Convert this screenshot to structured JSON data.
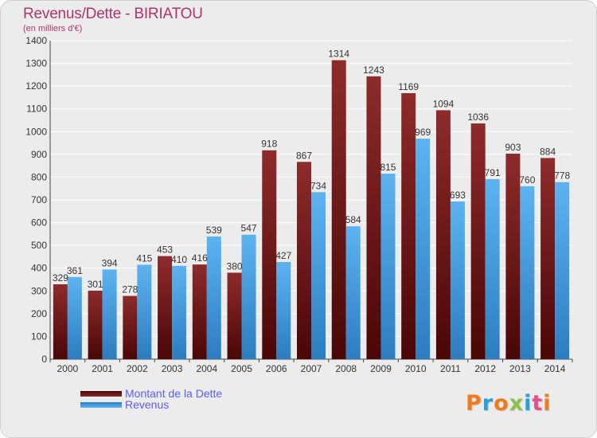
{
  "header": {
    "title": "Revenus/Dette - BIRIATOU",
    "subtitle": "(en milliers d'€)"
  },
  "legend": {
    "debt_label": "Montant de la Dette",
    "revenue_label": "Revenus"
  },
  "logo": {
    "text": "Proxiti"
  },
  "colors": {
    "debt": "#7b1c1c",
    "revenue": "#4aa3e6",
    "title": "#b2326e",
    "legend_text": "#5b5bff"
  },
  "chart_data": {
    "type": "bar",
    "categories": [
      "2000",
      "2001",
      "2002",
      "2003",
      "2004",
      "2005",
      "2006",
      "2007",
      "2008",
      "2009",
      "2010",
      "2011",
      "2012",
      "2013",
      "2014"
    ],
    "series": [
      {
        "name": "Montant de la Dette",
        "values": [
          329,
          301,
          278,
          453,
          416,
          380,
          918,
          867,
          1314,
          1243,
          1169,
          1094,
          1036,
          903,
          884
        ]
      },
      {
        "name": "Revenus",
        "values": [
          361,
          394,
          415,
          410,
          539,
          547,
          427,
          734,
          584,
          815,
          969,
          693,
          791,
          760,
          778
        ]
      }
    ],
    "yticks": [
      0,
      100,
      200,
      300,
      400,
      500,
      600,
      700,
      800,
      900,
      1000,
      1100,
      1200,
      1300,
      1400
    ],
    "ylim": [
      0,
      1400
    ],
    "grid": true,
    "legend_position": "bottom-left"
  }
}
